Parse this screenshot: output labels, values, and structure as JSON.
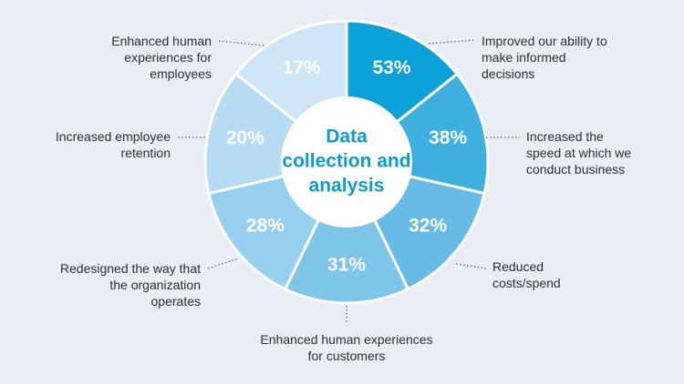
{
  "chart_data": {
    "type": "wheel",
    "center_text": [
      "Data",
      "collection and",
      "analysis"
    ],
    "categories": [
      "Improved our ability to make informed decisions",
      "Increased the speed at which we conduct business",
      "Reduced costs/spend",
      "Enhanced human experiences for customers",
      "Redesigned the way that the organization operates",
      "Increased employee retention",
      "Enhanced human experiences for employees"
    ],
    "values": [
      53,
      38,
      32,
      31,
      28,
      20,
      17
    ],
    "value_labels": [
      "53%",
      "38%",
      "32%",
      "31%",
      "28%",
      "20%",
      "17%"
    ],
    "colors": [
      "#0aa2d9",
      "#3db0e0",
      "#67bce6",
      "#7ec5ea",
      "#96d0ef",
      "#b5dcf2",
      "#cde6f5"
    ]
  }
}
